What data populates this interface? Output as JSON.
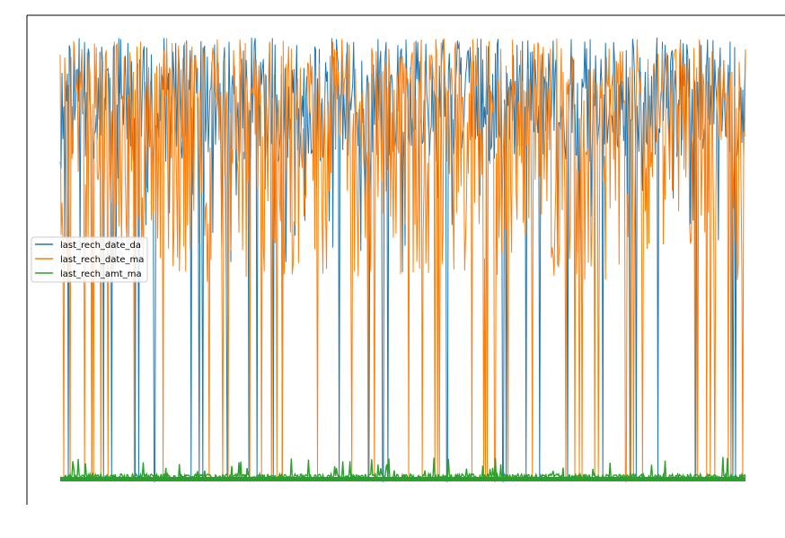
{
  "chart_data": {
    "type": "line",
    "title": "",
    "xlabel": "",
    "ylabel": "",
    "axis_ticks_visible": false,
    "legend_location": "center-left",
    "grid": false,
    "series": [
      {
        "name": "last_rech_date_da",
        "color": "#1f77b4",
        "typical_range": [
          0.7,
          1.0
        ],
        "occasional_dips_to": 0.0
      },
      {
        "name": "last_rech_date_ma",
        "color": "#ff7f0e",
        "typical_range": [
          0.45,
          1.0
        ],
        "occasional_dips_to": 0.0
      },
      {
        "name": "last_rech_amt_ma",
        "color": "#2ca02c",
        "typical_range": [
          0.0,
          0.02
        ],
        "occasional_spikes_to": 0.06
      }
    ]
  }
}
